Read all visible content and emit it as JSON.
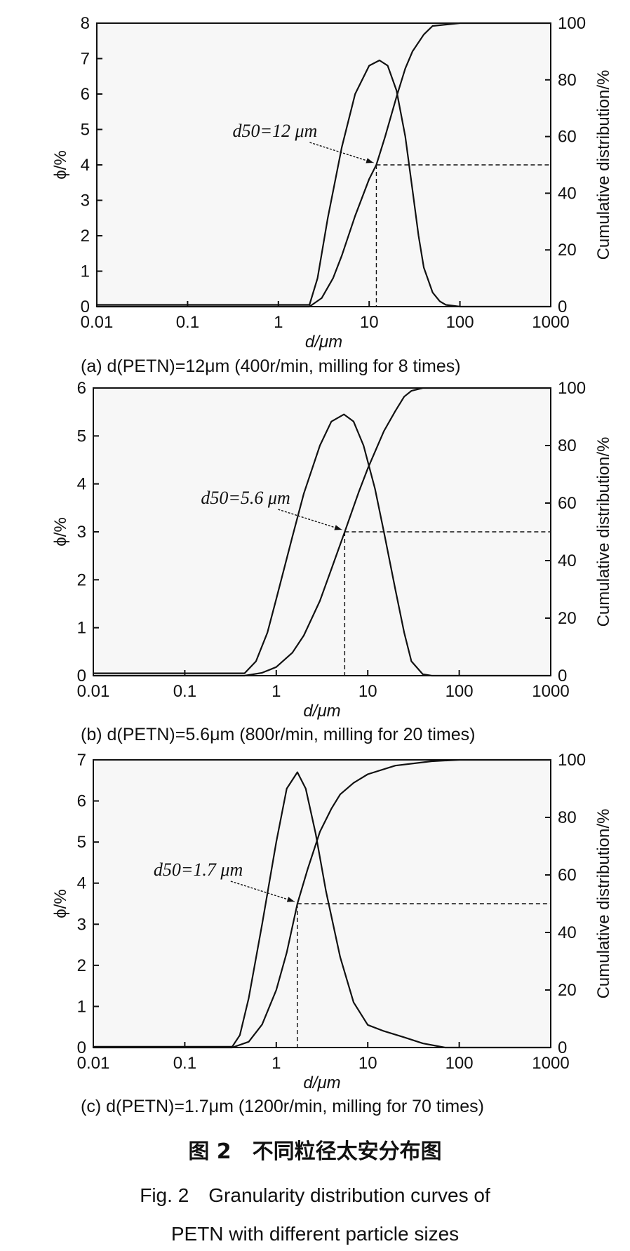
{
  "figure": {
    "title_cn": "图 2　不同粒径太安分布图",
    "title_en_line1": "Fig. 2　Granularity distribution curves of",
    "title_en_line2": "PETN with different particle sizes"
  },
  "chart_data": [
    {
      "type": "line",
      "panel": "a",
      "caption": "(a) d(PETN)=12μm (400r/min, milling for 8 times)",
      "xlabel": "d/μm",
      "ylabel": "ϕ/%",
      "y2label": "Cumulative distribution/%",
      "xscale": "log",
      "xlim": [
        0.01,
        1000
      ],
      "ylim": [
        0,
        8
      ],
      "y2lim": [
        0,
        100
      ],
      "x_ticks": [
        "0.01",
        "0.1",
        "1",
        "10",
        "100",
        "1000"
      ],
      "y_ticks": [
        "0",
        "1",
        "2",
        "3",
        "4",
        "5",
        "6",
        "7",
        "8"
      ],
      "y2_ticks": [
        "0",
        "20",
        "40",
        "60",
        "80",
        "100"
      ],
      "d50": 12,
      "d50_label": "d50=12 μm",
      "series": [
        {
          "axis": "left",
          "x": [
            0.01,
            2.2,
            2.7,
            3.5,
            5,
            7,
            10,
            13,
            16,
            20,
            25,
            30,
            35,
            40,
            50,
            60,
            70,
            100,
            1000
          ],
          "values": [
            0.05,
            0.05,
            0.8,
            2.5,
            4.5,
            6.0,
            6.8,
            6.95,
            6.8,
            6.1,
            4.8,
            3.3,
            2.0,
            1.1,
            0.4,
            0.15,
            0.05,
            0.0,
            0.0
          ]
        },
        {
          "axis": "right",
          "x": [
            0.01,
            2.2,
            3,
            4,
            5,
            7,
            10,
            12,
            15,
            20,
            25,
            30,
            40,
            50,
            100,
            1000
          ],
          "values": [
            0,
            0,
            3,
            10,
            18,
            32,
            45,
            50,
            60,
            74,
            84,
            90,
            96,
            99,
            100,
            100
          ]
        }
      ]
    },
    {
      "type": "line",
      "panel": "b",
      "caption": "(b) d(PETN)=5.6μm (800r/min, milling for 20 times)",
      "xlabel": "d/μm",
      "ylabel": "ϕ/%",
      "y2label": "Cumulative distribution/%",
      "xscale": "log",
      "xlim": [
        0.01,
        1000
      ],
      "ylim": [
        0,
        6
      ],
      "y2lim": [
        0,
        100
      ],
      "x_ticks": [
        "0.01",
        "0.1",
        "1",
        "10",
        "100",
        "1000"
      ],
      "y_ticks": [
        "0",
        "1",
        "2",
        "3",
        "4",
        "5",
        "6"
      ],
      "y2_ticks": [
        "0",
        "20",
        "40",
        "60",
        "80",
        "100"
      ],
      "d50": 5.6,
      "d50_label": "d50=5.6 μm",
      "series": [
        {
          "axis": "left",
          "x": [
            0.01,
            0.45,
            0.6,
            0.8,
            1,
            1.5,
            2,
            3,
            4,
            5.5,
            7,
            9,
            12,
            15,
            20,
            25,
            30,
            40,
            50,
            1000
          ],
          "values": [
            0.05,
            0.05,
            0.3,
            0.9,
            1.6,
            2.9,
            3.8,
            4.8,
            5.3,
            5.45,
            5.3,
            4.8,
            3.9,
            3.0,
            1.8,
            0.9,
            0.3,
            0.03,
            0.0,
            0.0
          ]
        },
        {
          "axis": "right",
          "x": [
            0.01,
            0.45,
            0.7,
            1,
            1.5,
            2,
            3,
            4,
            5.6,
            8,
            10,
            15,
            20,
            25,
            30,
            40,
            100,
            1000
          ],
          "values": [
            0,
            0,
            1,
            3,
            8,
            14,
            26,
            37,
            50,
            64,
            72,
            85,
            92,
            97,
            99,
            100,
            100,
            100
          ]
        }
      ]
    },
    {
      "type": "line",
      "panel": "c",
      "caption": "(c) d(PETN)=1.7μm (1200r/min, milling for 70 times)",
      "xlabel": "d/μm",
      "ylabel": "ϕ/%",
      "y2label": "Cumulative distribution/%",
      "xscale": "log",
      "xlim": [
        0.01,
        1000
      ],
      "ylim": [
        0,
        7
      ],
      "y2lim": [
        0,
        100
      ],
      "x_ticks": [
        "0.01",
        "0.1",
        "1",
        "10",
        "100",
        "1000"
      ],
      "y_ticks": [
        "0",
        "1",
        "2",
        "3",
        "4",
        "5",
        "6",
        "7"
      ],
      "y2_ticks": [
        "0",
        "20",
        "40",
        "60",
        "80",
        "100"
      ],
      "d50": 1.7,
      "d50_label": "d50=1.7 μm",
      "series": [
        {
          "axis": "left",
          "x": [
            0.01,
            0.33,
            0.4,
            0.5,
            0.7,
            1,
            1.3,
            1.7,
            2.1,
            2.7,
            3.5,
            5,
            7,
            10,
            15,
            25,
            40,
            70,
            1000
          ],
          "values": [
            0.02,
            0.02,
            0.3,
            1.2,
            3.0,
            5.0,
            6.3,
            6.7,
            6.3,
            5.2,
            3.8,
            2.2,
            1.1,
            0.55,
            0.4,
            0.25,
            0.1,
            0.0,
            0.0
          ]
        },
        {
          "axis": "right",
          "x": [
            0.01,
            0.33,
            0.5,
            0.7,
            1,
            1.3,
            1.7,
            2.2,
            3,
            4,
            5,
            7,
            10,
            20,
            50,
            100,
            1000
          ],
          "values": [
            0,
            0,
            2,
            8,
            20,
            33,
            50,
            62,
            75,
            83,
            88,
            92,
            95,
            98,
            99.5,
            100,
            100
          ]
        }
      ]
    }
  ]
}
